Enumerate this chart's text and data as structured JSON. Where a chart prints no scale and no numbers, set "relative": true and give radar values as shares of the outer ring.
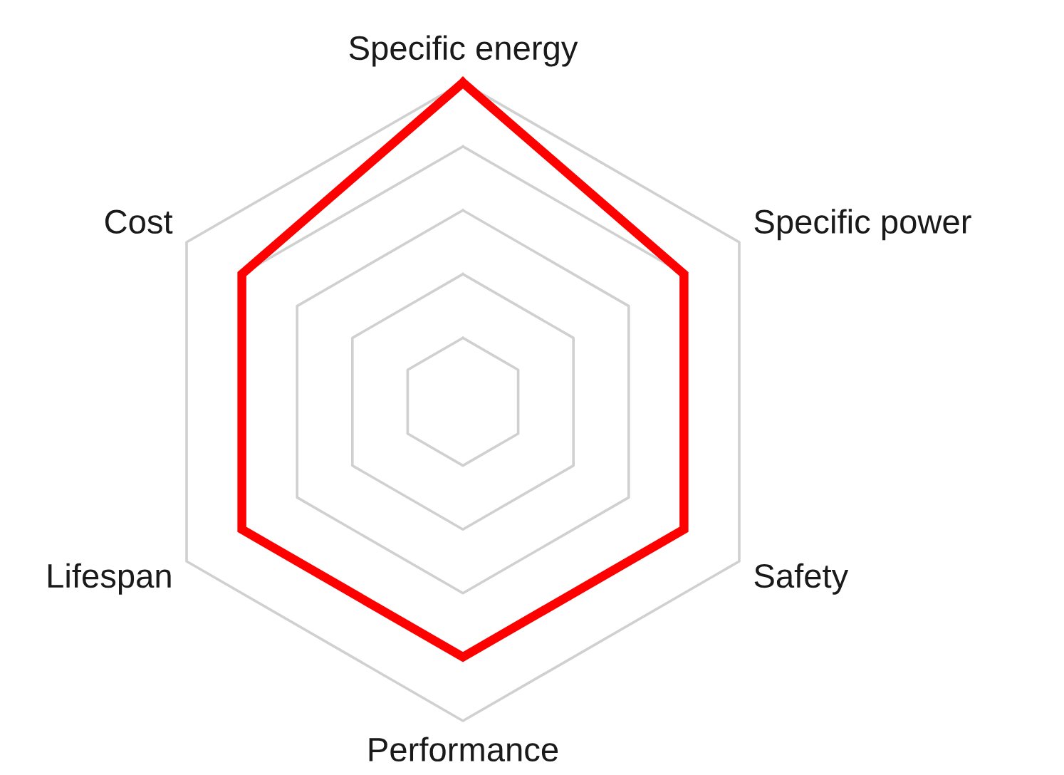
{
  "chart_data": {
    "type": "radar",
    "relative": true,
    "grid": true,
    "marker": "none",
    "line_style": "solid",
    "categories": [
      "Specific energy",
      "Specific power",
      "Safety",
      "Performance",
      "Lifespan",
      "Cost"
    ],
    "series": [
      {
        "color": "#ff0000",
        "values": [
          1.0,
          0.8,
          0.8,
          0.8,
          0.8,
          0.8
        ]
      }
    ]
  }
}
